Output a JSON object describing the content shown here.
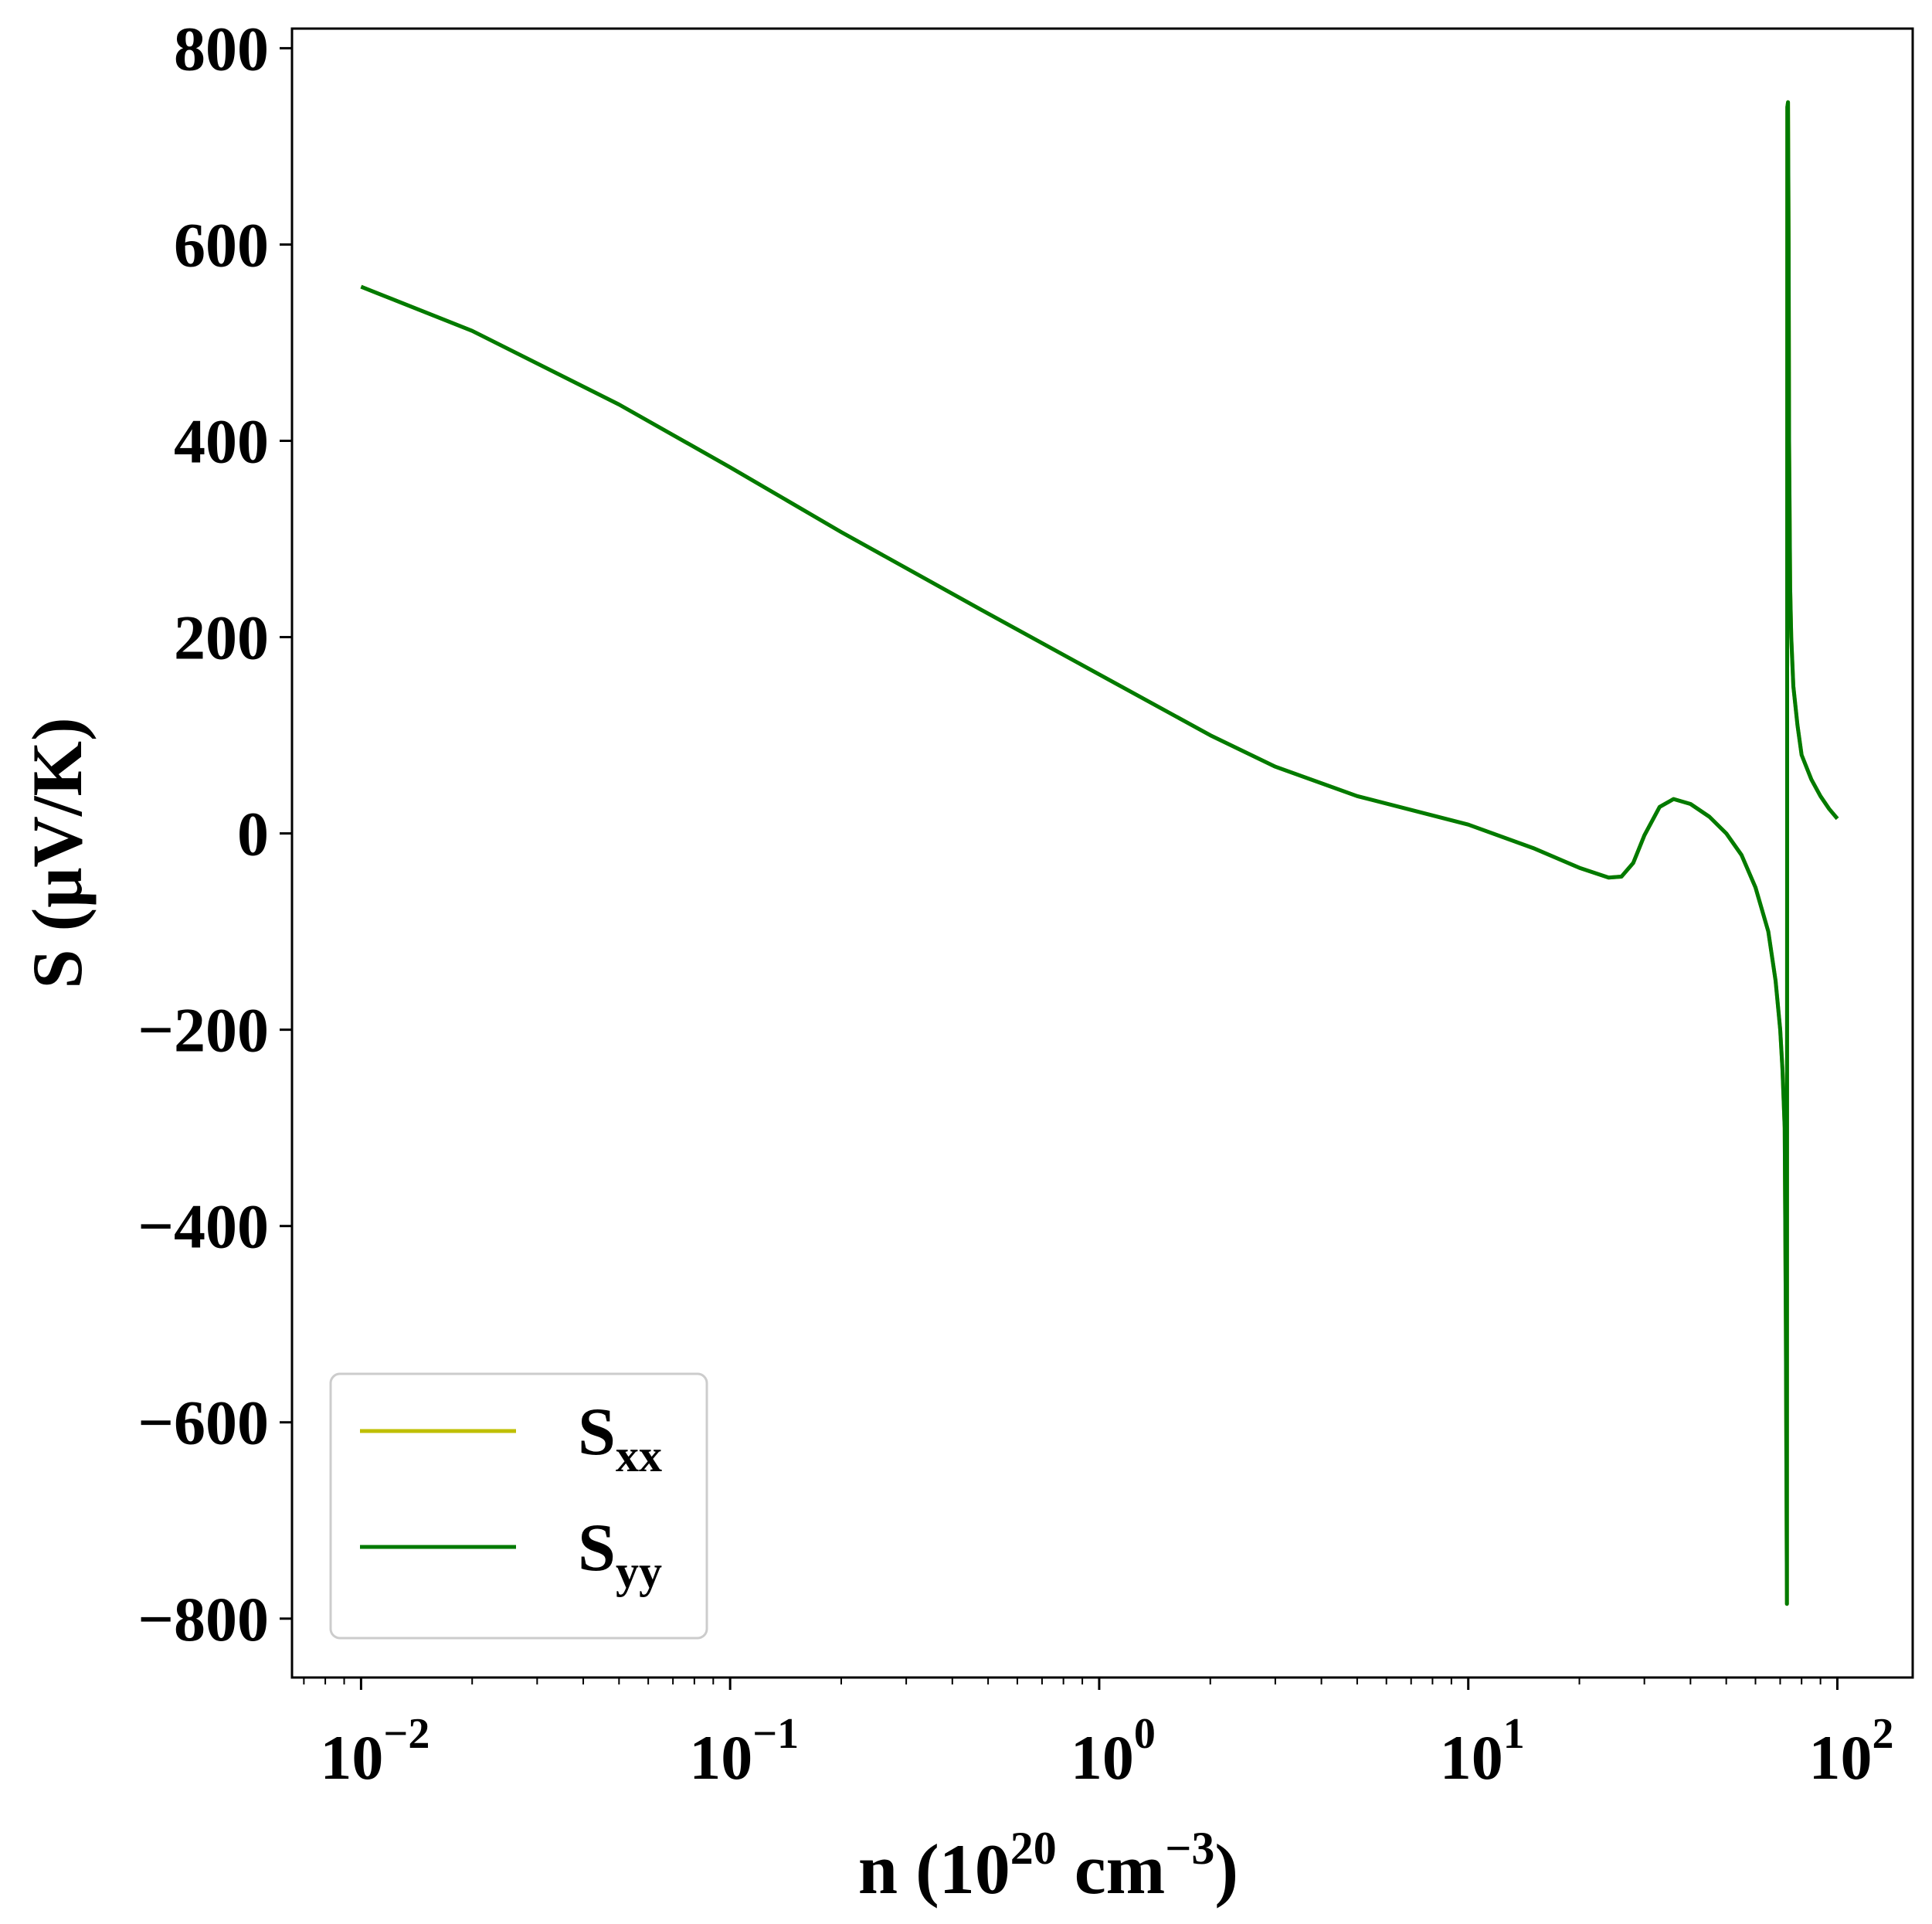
{
  "chart_data": {
    "type": "line",
    "x_scale": "log",
    "xlim": [
      0.0065,
      160
    ],
    "ylim": [
      -860,
      820
    ],
    "grid": false,
    "legend_position": "lower-left",
    "xlabel": {
      "prefix": "n (10",
      "sup1": "20",
      "middle": " cm",
      "sup2": "−3",
      "suffix": ")"
    },
    "ylabel": "S (μV/K)",
    "x_ticks": [
      {
        "value": 0.01,
        "base": "10",
        "exp": "−2"
      },
      {
        "value": 0.1,
        "base": "10",
        "exp": "−1"
      },
      {
        "value": 1,
        "base": "10",
        "exp": "0"
      },
      {
        "value": 10,
        "base": "10",
        "exp": "1"
      },
      {
        "value": 100,
        "base": "10",
        "exp": "2"
      }
    ],
    "y_ticks": [
      {
        "value": 800,
        "label": "800"
      },
      {
        "value": 600,
        "label": "600"
      },
      {
        "value": 400,
        "label": "400"
      },
      {
        "value": 200,
        "label": "200"
      },
      {
        "value": 0,
        "label": "0"
      },
      {
        "value": -200,
        "label": "−200"
      },
      {
        "value": -400,
        "label": "−400"
      },
      {
        "value": -600,
        "label": "−600"
      },
      {
        "value": -800,
        "label": "−800"
      }
    ],
    "series": [
      {
        "name": "S",
        "sub": "xx",
        "color": "#bfbf00",
        "x": [
          0.01,
          0.02,
          0.05,
          0.1,
          0.2,
          0.5,
          1,
          2,
          3,
          5,
          10,
          15,
          20,
          24,
          26,
          28,
          30,
          33,
          36,
          40,
          45,
          50,
          55,
          60,
          65,
          68,
          70,
          71,
          72,
          72.5,
          73,
          73.2,
          73.5,
          73.8,
          74,
          74.5,
          75,
          76,
          78,
          80,
          85,
          90,
          95,
          100
        ],
        "values": [
          557,
          512,
          437,
          373,
          307,
          224,
          162,
          100,
          68,
          38,
          9,
          -15,
          -35,
          -45,
          -44,
          -30,
          -2,
          27,
          35,
          30,
          17,
          0,
          -22,
          -55,
          -100,
          -150,
          -200,
          -240,
          -300,
          -500,
          -785,
          740,
          745,
          600,
          400,
          250,
          200,
          150,
          110,
          80,
          55,
          38,
          25,
          15
        ]
      },
      {
        "name": "S",
        "sub": "yy",
        "color": "#007a00",
        "x": [
          0.01,
          0.02,
          0.05,
          0.1,
          0.2,
          0.5,
          1,
          2,
          3,
          5,
          10,
          15,
          20,
          24,
          26,
          28,
          30,
          33,
          36,
          40,
          45,
          50,
          55,
          60,
          65,
          68,
          70,
          71,
          72,
          72.5,
          73,
          73.2,
          73.5,
          73.8,
          74,
          74.5,
          75,
          76,
          78,
          80,
          85,
          90,
          95,
          100
        ],
        "values": [
          557,
          512,
          437,
          373,
          307,
          224,
          162,
          100,
          68,
          38,
          9,
          -15,
          -35,
          -45,
          -44,
          -30,
          -2,
          27,
          35,
          30,
          17,
          0,
          -22,
          -55,
          -100,
          -150,
          -200,
          -240,
          -300,
          -500,
          -785,
          740,
          745,
          600,
          400,
          250,
          200,
          150,
          110,
          80,
          55,
          38,
          25,
          15
        ]
      }
    ]
  }
}
